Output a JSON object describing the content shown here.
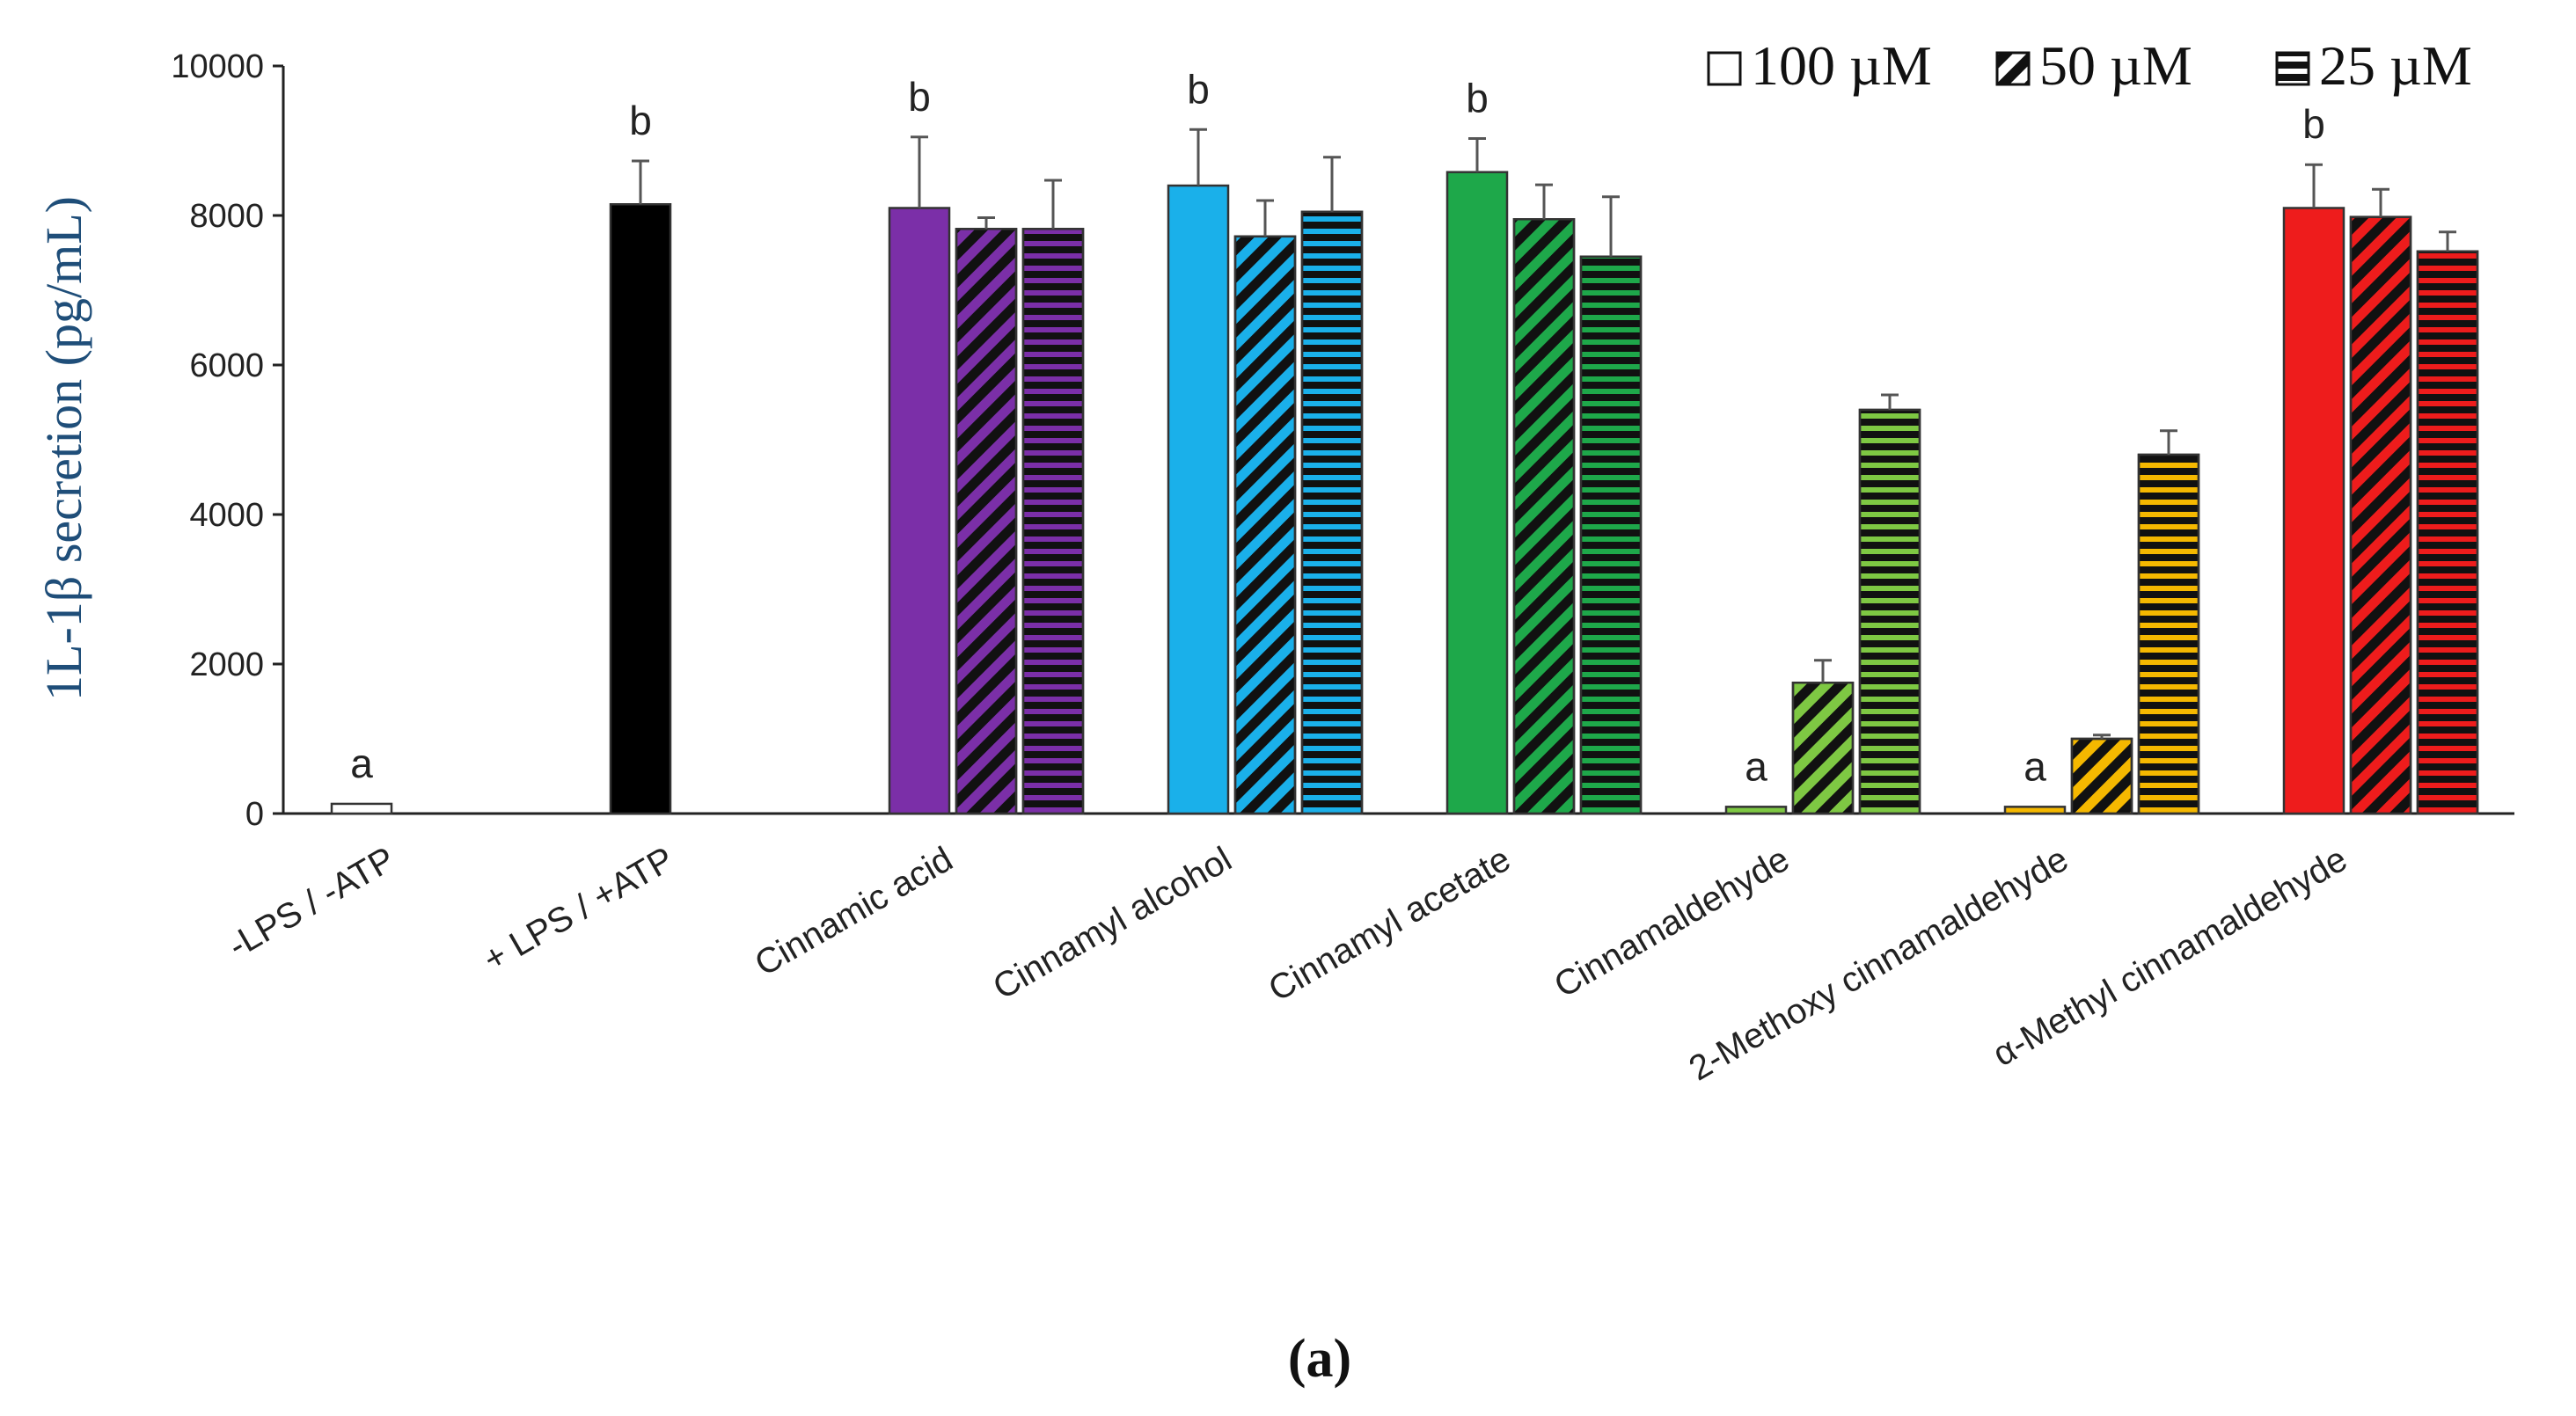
{
  "chart_data": {
    "type": "bar",
    "title": "",
    "ylabel": "1L-1β secretion (pg/mL)",
    "xlabel": "",
    "ylim": [
      0,
      10000
    ],
    "yticks": [
      0,
      2000,
      4000,
      6000,
      8000,
      10000
    ],
    "ytick_labels": [
      "0",
      "2000",
      "4000",
      "6000",
      "8000",
      "10000"
    ],
    "panel_label": "(a)",
    "legend": [
      {
        "name": "100 µM",
        "pattern": "solid"
      },
      {
        "name": "50 µM",
        "pattern": "diagonal"
      },
      {
        "name": "25 µM",
        "pattern": "horizontal"
      }
    ],
    "categories": [
      {
        "label": "-LPS / -ATP",
        "color": "#ffffff",
        "bars": [
          {
            "series": "100 µM",
            "value": 130,
            "error": 0,
            "sig": "a"
          }
        ]
      },
      {
        "label": "+ LPS / +ATP",
        "color": "#000000",
        "bars": [
          {
            "series": "100 µM",
            "value": 8150,
            "error": 580,
            "sig": "b"
          }
        ]
      },
      {
        "label": "Cinnamic acid",
        "color": "#7b2fa8",
        "bars": [
          {
            "series": "100 µM",
            "value": 8100,
            "error": 950,
            "sig": "b"
          },
          {
            "series": "50 µM",
            "value": 7820,
            "error": 150,
            "sig": ""
          },
          {
            "series": "25 µM",
            "value": 7820,
            "error": 650,
            "sig": ""
          }
        ]
      },
      {
        "label": "Cinnamyl alcohol",
        "color": "#1ab0ea",
        "bars": [
          {
            "series": "100 µM",
            "value": 8400,
            "error": 750,
            "sig": "b"
          },
          {
            "series": "50 µM",
            "value": 7720,
            "error": 480,
            "sig": ""
          },
          {
            "series": "25 µM",
            "value": 8050,
            "error": 730,
            "sig": ""
          }
        ]
      },
      {
        "label": "Cinnamyl acetate",
        "color": "#1ea84a",
        "bars": [
          {
            "series": "100 µM",
            "value": 8580,
            "error": 450,
            "sig": "b"
          },
          {
            "series": "50 µM",
            "value": 7950,
            "error": 460,
            "sig": ""
          },
          {
            "series": "25 µM",
            "value": 7450,
            "error": 800,
            "sig": ""
          }
        ]
      },
      {
        "label": "Cinnamaldehyde",
        "color": "#7ec843",
        "bars": [
          {
            "series": "100 µM",
            "value": 90,
            "error": 0,
            "sig": "a"
          },
          {
            "series": "50 µM",
            "value": 1750,
            "error": 300,
            "sig": ""
          },
          {
            "series": "25 µM",
            "value": 5400,
            "error": 200,
            "sig": ""
          }
        ]
      },
      {
        "label": "2-Methoxy cinnamaldehyde",
        "color": "#f5b800",
        "bars": [
          {
            "series": "100 µM",
            "value": 90,
            "error": 0,
            "sig": "a"
          },
          {
            "series": "50 µM",
            "value": 1000,
            "error": 50,
            "sig": ""
          },
          {
            "series": "25 µM",
            "value": 4800,
            "error": 320,
            "sig": ""
          }
        ]
      },
      {
        "label": "α-Methyl  cinnamaldehyde",
        "color": "#ee1c1c",
        "bars": [
          {
            "series": "100 µM",
            "value": 8100,
            "error": 580,
            "sig": "b"
          },
          {
            "series": "50 µM",
            "value": 7980,
            "error": 370,
            "sig": ""
          },
          {
            "series": "25 µM",
            "value": 7520,
            "error": 260,
            "sig": ""
          }
        ]
      }
    ]
  }
}
